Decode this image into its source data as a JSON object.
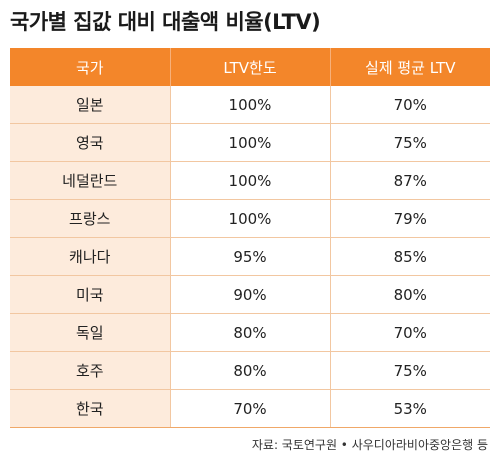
{
  "chart_data": {
    "type": "table",
    "title": "국가별 집값 대비 대출액 비율(LTV)",
    "columns": [
      "국가",
      "LTV한도",
      "실제 평균 LTV"
    ],
    "rows": [
      {
        "country": "일본",
        "ltv_limit": "100%",
        "actual_ltv": "70%"
      },
      {
        "country": "영국",
        "ltv_limit": "100%",
        "actual_ltv": "75%"
      },
      {
        "country": "네덜란드",
        "ltv_limit": "100%",
        "actual_ltv": "87%"
      },
      {
        "country": "프랑스",
        "ltv_limit": "100%",
        "actual_ltv": "79%"
      },
      {
        "country": "캐나다",
        "ltv_limit": "95%",
        "actual_ltv": "85%"
      },
      {
        "country": "미국",
        "ltv_limit": "90%",
        "actual_ltv": "80%"
      },
      {
        "country": "독일",
        "ltv_limit": "80%",
        "actual_ltv": "70%"
      },
      {
        "country": "호주",
        "ltv_limit": "80%",
        "actual_ltv": "75%"
      },
      {
        "country": "한국",
        "ltv_limit": "70%",
        "actual_ltv": "53%"
      }
    ],
    "source": "자료: 국토연구원 • 사우디아라비아중앙은행 등"
  },
  "colors": {
    "header_bg": "#f3862a",
    "country_cell_bg": "#fdebdc",
    "grid_line": "#f2c7a1"
  }
}
